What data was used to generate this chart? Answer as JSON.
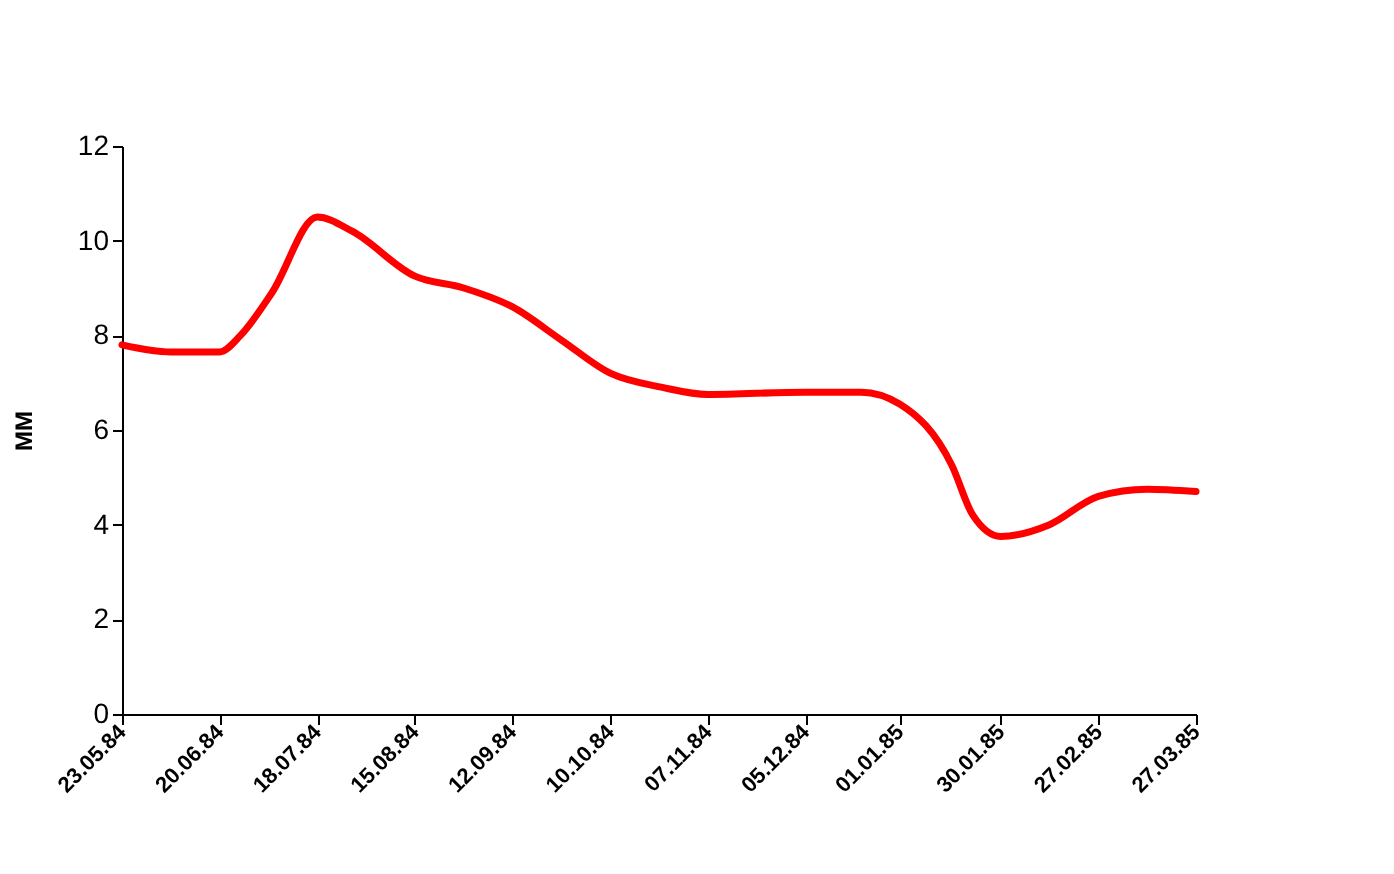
{
  "chart_data": {
    "type": "line",
    "ylabel": "MM",
    "x": [
      "1984-05-23",
      "1984-06-06",
      "1984-06-20",
      "1984-06-26",
      "1984-07-05",
      "1984-07-18",
      "1984-07-28",
      "1984-08-15",
      "1984-08-29",
      "1984-09-12",
      "1984-09-26",
      "1984-10-10",
      "1984-10-25",
      "1984-11-07",
      "1984-12-05",
      "1984-12-21",
      "1985-01-01",
      "1985-01-16",
      "1985-01-22",
      "1985-01-30",
      "1985-02-13",
      "1985-02-27",
      "1985-03-13",
      "1985-03-27"
    ],
    "series": [
      {
        "color": "#ff0000",
        "values": [
          7.8,
          7.65,
          7.65,
          8.0,
          8.9,
          10.5,
          10.2,
          9.25,
          9.0,
          8.6,
          7.9,
          7.2,
          6.9,
          6.75,
          6.8,
          6.8,
          6.55,
          5.25,
          4.2,
          3.75,
          4.0,
          4.6,
          4.75,
          4.7
        ]
      }
    ],
    "xlim": [
      "1984-05-23",
      "1985-03-27"
    ],
    "xticks": [
      {
        "value": "1984-05-23",
        "label": "23.05.84"
      },
      {
        "value": "1984-06-20",
        "label": "20.06.84"
      },
      {
        "value": "1984-07-18",
        "label": "18.07.84"
      },
      {
        "value": "1984-08-15",
        "label": "15.08.84"
      },
      {
        "value": "1984-09-12",
        "label": "12.09.84"
      },
      {
        "value": "1984-10-10",
        "label": "10.10.84"
      },
      {
        "value": "1984-11-07",
        "label": "07.11.84"
      },
      {
        "value": "1984-12-05",
        "label": "05.12.84"
      },
      {
        "value": "1985-01-01",
        "label": "01.01.85"
      },
      {
        "value": "1985-01-30",
        "label": "30.01.85"
      },
      {
        "value": "1985-02-27",
        "label": "27.02.85"
      },
      {
        "value": "1985-03-27",
        "label": "27.03.85"
      }
    ],
    "ylim": [
      0,
      12
    ],
    "yticks": [
      0,
      2,
      4,
      6,
      8,
      10,
      12
    ],
    "grid": false,
    "legend": false,
    "marker": "none",
    "line_style": "solid"
  }
}
